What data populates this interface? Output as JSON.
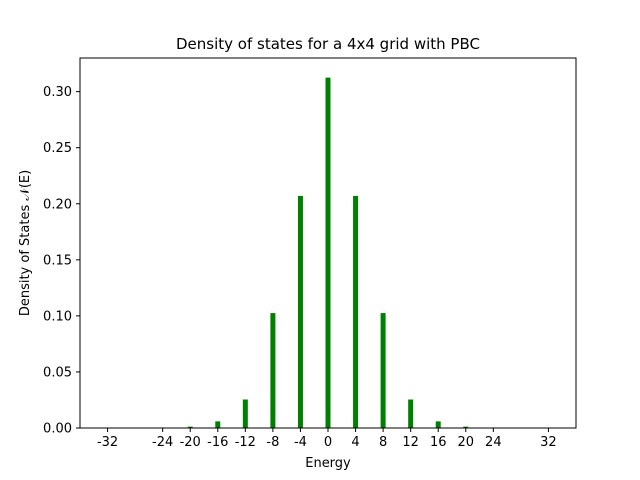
{
  "chart_data": {
    "type": "bar",
    "title": "Density of states for a 4x4 grid with PBC",
    "xlabel": "Energy",
    "ylabel": "Density of States  𝒩(E)",
    "x": [
      -32,
      -28,
      -24,
      -20,
      -16,
      -12,
      -8,
      -4,
      0,
      4,
      8,
      12,
      16,
      20,
      24,
      28,
      32
    ],
    "values": [
      0.0,
      0.0,
      0.0,
      0.0012,
      0.0059,
      0.0254,
      0.1025,
      0.207,
      0.3125,
      0.207,
      0.1025,
      0.0254,
      0.0059,
      0.0012,
      0.0,
      0.0,
      0.0
    ],
    "xticks": [
      -32,
      -24,
      -20,
      -16,
      -12,
      -8,
      -4,
      0,
      4,
      8,
      12,
      16,
      20,
      24,
      32
    ],
    "xtick_labels": [
      "-32",
      "-24",
      "-20",
      "-16",
      "-12",
      "-8",
      "-4",
      "0",
      "4",
      "8",
      "12",
      "16",
      "20",
      "24",
      "32"
    ],
    "yticks": [
      0.0,
      0.05,
      0.1,
      0.15,
      0.2,
      0.25,
      0.3
    ],
    "ytick_labels": [
      "0.00",
      "0.05",
      "0.10",
      "0.15",
      "0.20",
      "0.25",
      "0.30"
    ],
    "xlim": [
      -36,
      36
    ],
    "ylim": [
      0,
      0.33
    ],
    "bar_color": "#008000",
    "grid": false,
    "legend": "none"
  }
}
